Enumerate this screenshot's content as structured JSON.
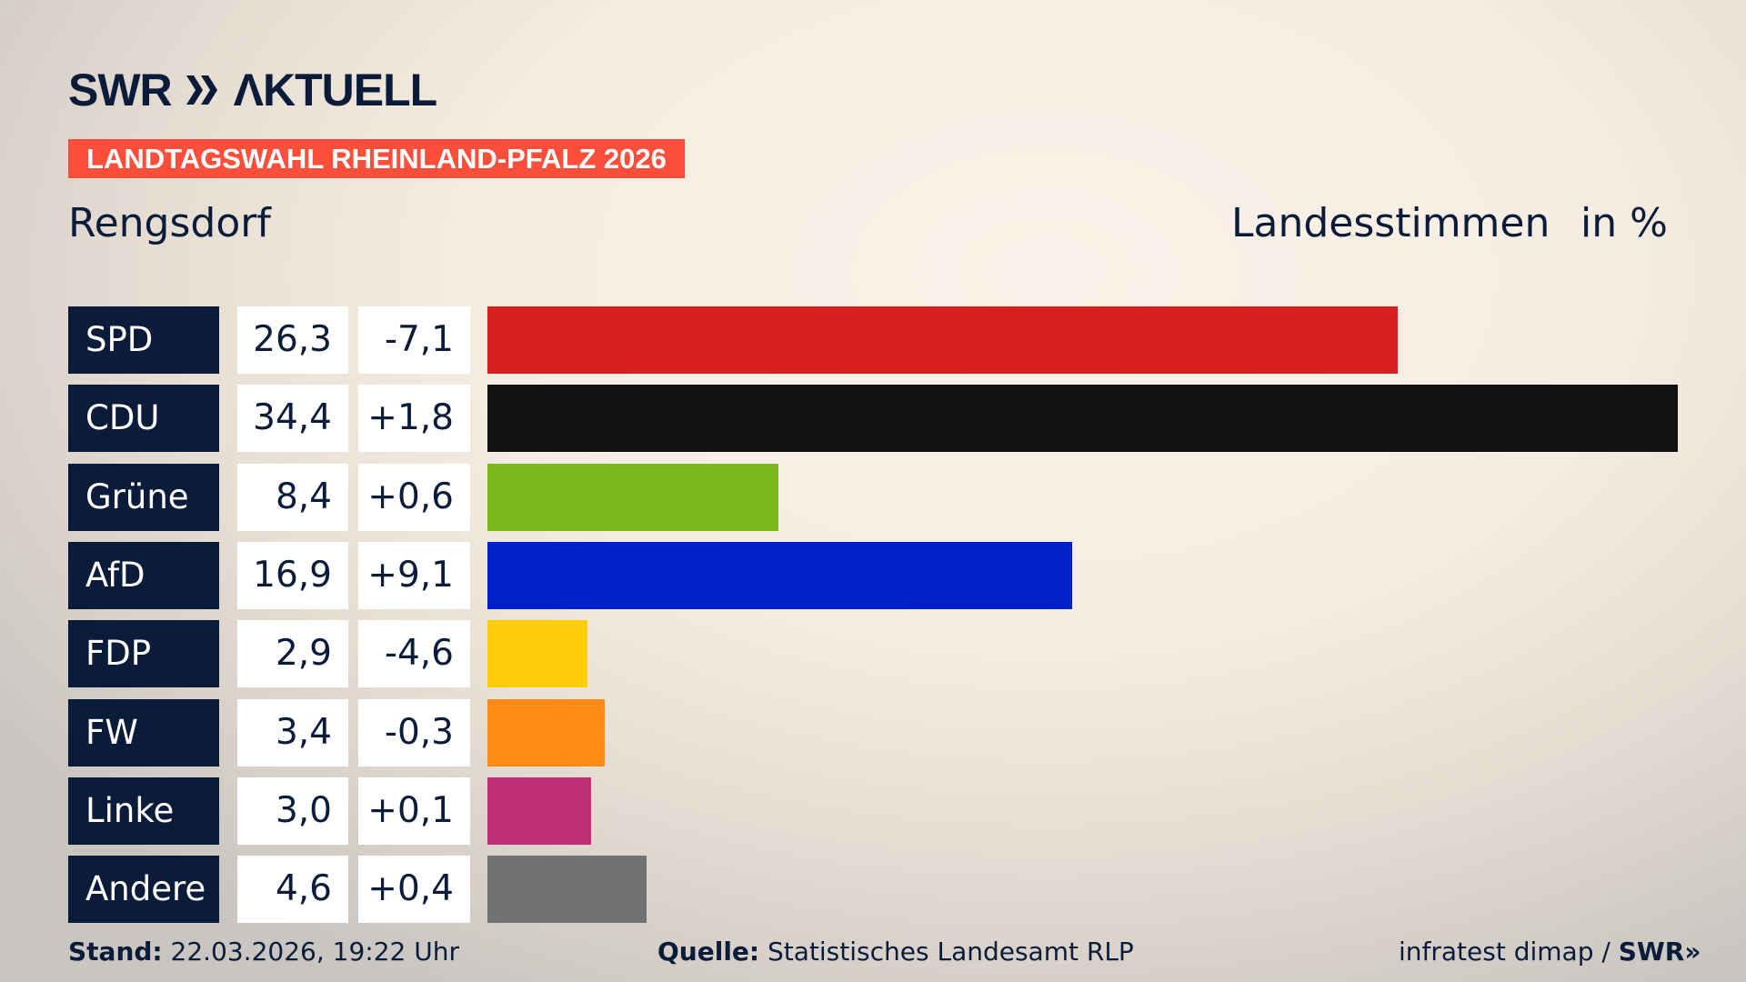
{
  "logo": {
    "text": "SWR AKTUELL"
  },
  "badge": "LANDTAGSWAHL RHEINLAND-PFALZ 2026",
  "place": "Rengsdorf",
  "header": {
    "measure": "Landesstimmen",
    "unit": "in %"
  },
  "chart_data": {
    "type": "bar",
    "orientation": "horizontal",
    "categories": [
      "SPD",
      "CDU",
      "Grüne",
      "AfD",
      "FDP",
      "FW",
      "Linke",
      "Andere"
    ],
    "values": [
      26.3,
      34.4,
      8.4,
      16.9,
      2.9,
      3.4,
      3.0,
      4.6
    ],
    "values_label": [
      "26,3",
      "34,4",
      "8,4",
      "16,9",
      "2,9",
      "3,4",
      "3,0",
      "4,6"
    ],
    "changes": [
      -7.1,
      1.8,
      0.6,
      9.1,
      -4.6,
      -0.3,
      0.1,
      0.4
    ],
    "changes_label": [
      "-7,1",
      "+1,8",
      "+0,6",
      "+9,1",
      "-4,6",
      "-0,3",
      "+0,1",
      "+0,4"
    ],
    "colors": [
      "#d81f20",
      "#111111",
      "#7aba1c",
      "#0021c8",
      "#ffcd0a",
      "#ff8c16",
      "#bd3075",
      "#727272"
    ],
    "xlim": [
      0,
      34.4
    ],
    "grid": false
  },
  "footer": {
    "stand_label": "Stand:",
    "stand_value": " 22.03.2026, 19:22 Uhr",
    "source_label": "Quelle:",
    "source_value": " Statistisches Landesamt RLP",
    "credit": "infratest dimap / ",
    "credit_brand": "SWR"
  }
}
